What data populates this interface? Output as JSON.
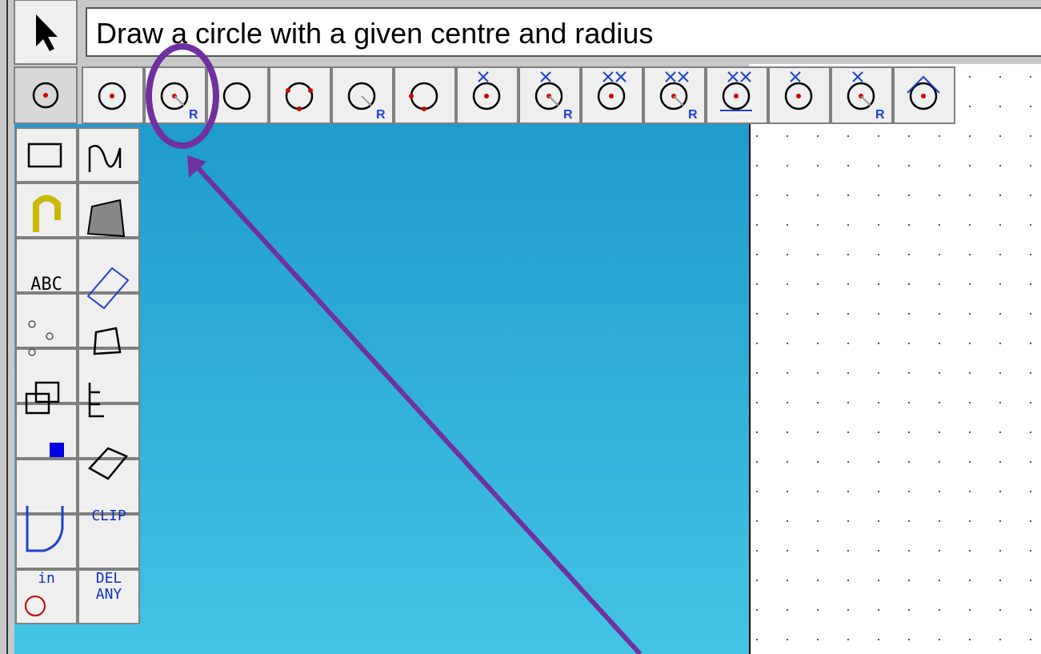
{
  "status_text": "Draw a circle with a given centre and radius",
  "toolbar_row": {
    "subscripts": [
      null,
      "R",
      null,
      null,
      "R",
      null,
      null,
      "R",
      null,
      "R",
      null,
      null,
      "R",
      null
    ]
  },
  "palette": {
    "abc": "ABC",
    "clip": "CLIP",
    "in": "in",
    "del": "DEL",
    "any": "ANY"
  }
}
